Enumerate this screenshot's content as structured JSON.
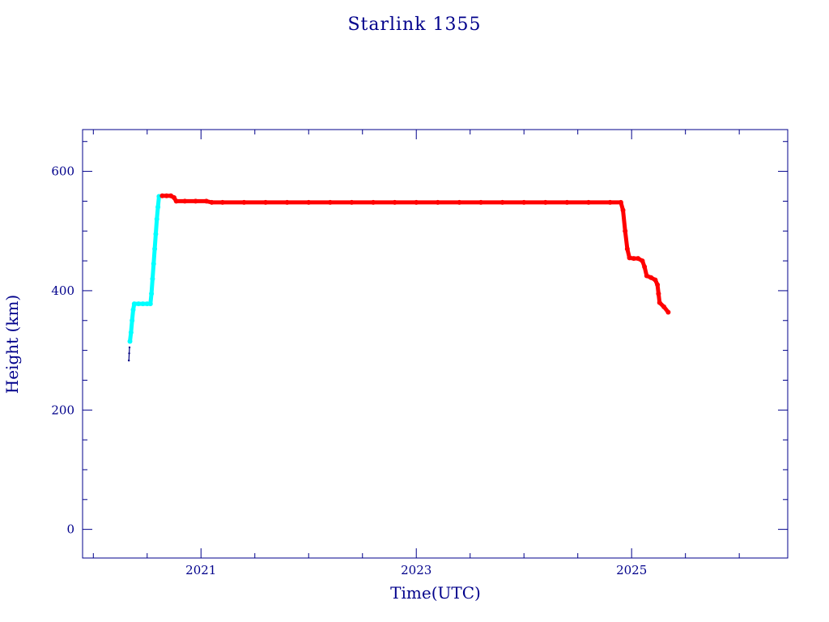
{
  "chart_data": {
    "type": "scatter",
    "title": "Starlink 1355",
    "xlabel": "Time(UTC)",
    "ylabel": "Height (km)",
    "xlim": [
      2019.9,
      2026.45
    ],
    "ylim": [
      -48,
      670
    ],
    "x_ticks": [
      2021,
      2023,
      2025
    ],
    "x_tick_labels": [
      "2021",
      "2023",
      "2025"
    ],
    "y_ticks": [
      0,
      200,
      400,
      600
    ],
    "y_tick_labels": [
      "0",
      "200",
      "400",
      "600"
    ],
    "grid": false,
    "series": [
      {
        "color": "#000080",
        "points": [
          [
            2020.33,
            283
          ],
          [
            2020.333,
            295
          ],
          [
            2020.336,
            305
          ]
        ]
      },
      {
        "color": "#00ffff",
        "points": [
          [
            2020.34,
            315
          ],
          [
            2020.35,
            330
          ],
          [
            2020.36,
            350
          ],
          [
            2020.37,
            368
          ],
          [
            2020.38,
            378
          ],
          [
            2020.42,
            378
          ],
          [
            2020.46,
            378
          ],
          [
            2020.5,
            378
          ],
          [
            2020.53,
            378
          ],
          [
            2020.54,
            395
          ],
          [
            2020.55,
            420
          ],
          [
            2020.56,
            445
          ],
          [
            2020.57,
            470
          ],
          [
            2020.58,
            495
          ],
          [
            2020.59,
            520
          ],
          [
            2020.6,
            540
          ],
          [
            2020.61,
            558
          ]
        ]
      },
      {
        "color": "#ff0000",
        "points": [
          [
            2020.64,
            559
          ],
          [
            2020.68,
            559
          ],
          [
            2020.72,
            559
          ],
          [
            2020.75,
            556
          ],
          [
            2020.77,
            550
          ],
          [
            2020.85,
            550
          ],
          [
            2020.95,
            550
          ],
          [
            2021.05,
            550
          ],
          [
            2021.1,
            548
          ],
          [
            2021.2,
            548
          ],
          [
            2021.4,
            548
          ],
          [
            2021.6,
            548
          ],
          [
            2021.8,
            548
          ],
          [
            2022.0,
            548
          ],
          [
            2022.2,
            548
          ],
          [
            2022.4,
            548
          ],
          [
            2022.6,
            548
          ],
          [
            2022.8,
            548
          ],
          [
            2023.0,
            548
          ],
          [
            2023.2,
            548
          ],
          [
            2023.4,
            548
          ],
          [
            2023.6,
            548
          ],
          [
            2023.8,
            548
          ],
          [
            2024.0,
            548
          ],
          [
            2024.2,
            548
          ],
          [
            2024.4,
            548
          ],
          [
            2024.6,
            548
          ],
          [
            2024.8,
            548
          ],
          [
            2024.9,
            548
          ],
          [
            2024.92,
            535
          ],
          [
            2024.94,
            500
          ],
          [
            2024.96,
            470
          ],
          [
            2024.98,
            455
          ],
          [
            2025.02,
            454
          ],
          [
            2025.06,
            454
          ],
          [
            2025.1,
            450
          ],
          [
            2025.12,
            440
          ],
          [
            2025.14,
            425
          ],
          [
            2025.18,
            422
          ],
          [
            2025.22,
            418
          ],
          [
            2025.24,
            410
          ],
          [
            2025.25,
            395
          ],
          [
            2025.26,
            380
          ],
          [
            2025.3,
            373
          ],
          [
            2025.34,
            364
          ]
        ]
      }
    ]
  }
}
